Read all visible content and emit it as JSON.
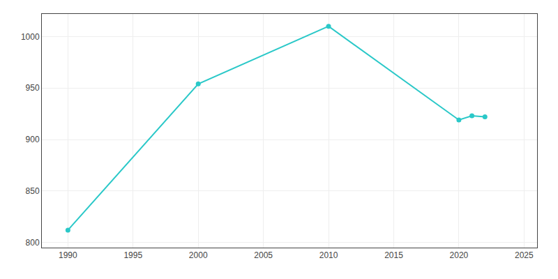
{
  "chart_data": {
    "type": "line",
    "x": [
      1990,
      2000,
      2010,
      2020,
      2021,
      2022
    ],
    "values": [
      812,
      954,
      1010,
      919,
      923,
      922
    ],
    "color": "#2ac8c8",
    "marker": "circle",
    "xlim": [
      1988,
      2026
    ],
    "ylim": [
      795,
      1022
    ],
    "xticks": [
      1990,
      1995,
      2000,
      2005,
      2010,
      2015,
      2020,
      2025
    ],
    "yticks": [
      800,
      850,
      900,
      950,
      1000
    ],
    "grid": true
  }
}
